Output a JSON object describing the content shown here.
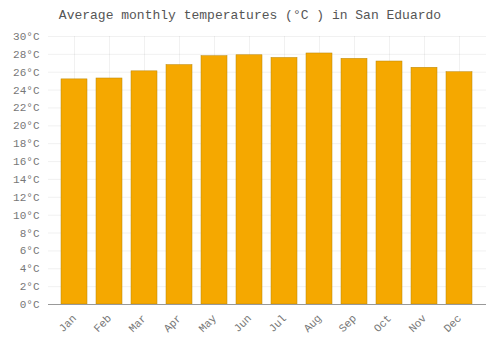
{
  "chart_data": {
    "type": "bar",
    "title": "Average monthly temperatures (°C ) in San Eduardo",
    "categories": [
      "Jan",
      "Feb",
      "Mar",
      "Apr",
      "May",
      "Jun",
      "Jul",
      "Aug",
      "Sep",
      "Oct",
      "Nov",
      "Dec"
    ],
    "values": [
      25.2,
      25.3,
      26.1,
      26.8,
      27.8,
      27.9,
      27.6,
      28.1,
      27.5,
      27.2,
      26.5,
      26.0
    ],
    "color": "#F5A800",
    "ylim": [
      0,
      30
    ],
    "yticks": [
      {
        "value": 0,
        "label": "0°C"
      },
      {
        "value": 2,
        "label": "2°C"
      },
      {
        "value": 4,
        "label": "4°C"
      },
      {
        "value": 6,
        "label": "6°C"
      },
      {
        "value": 8,
        "label": "8°C"
      },
      {
        "value": 10,
        "label": "10°C"
      },
      {
        "value": 12,
        "label": "12°C"
      },
      {
        "value": 14,
        "label": "14°C"
      },
      {
        "value": 16,
        "label": "16°C"
      },
      {
        "value": 18,
        "label": "18°C"
      },
      {
        "value": 20,
        "label": "20°C"
      },
      {
        "value": 22,
        "label": "22°C"
      },
      {
        "value": 24,
        "label": "24°C"
      },
      {
        "value": 26,
        "label": "26°C"
      },
      {
        "value": 28,
        "label": "28°C"
      },
      {
        "value": 30,
        "label": "30°C"
      }
    ],
    "grid": true
  }
}
